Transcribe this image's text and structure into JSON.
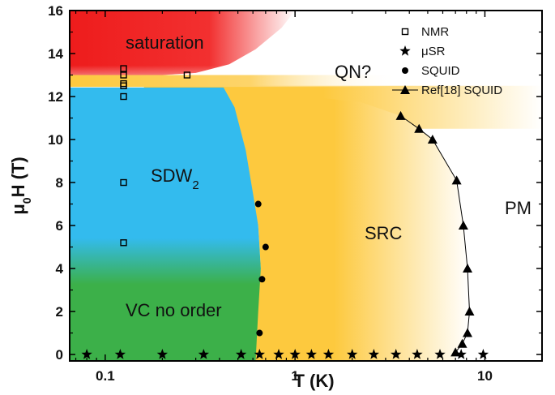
{
  "chart_data": {
    "type": "scatter",
    "title": "",
    "xlabel": "T (K)",
    "ylabel_main": "μ",
    "ylabel_sub": "0",
    "ylabel_rest": "H (T)",
    "xscale": "log",
    "xlim": [
      0.065,
      20
    ],
    "ylim": [
      -0.3,
      16
    ],
    "x_ticks": [
      0.1,
      1,
      10
    ],
    "x_tick_labels": [
      "0.1",
      "1",
      "10"
    ],
    "y_ticks": [
      0,
      2,
      4,
      6,
      8,
      10,
      12,
      14,
      16
    ],
    "y_tick_labels": [
      "0",
      "2",
      "4",
      "6",
      "8",
      "10",
      "12",
      "14",
      "16"
    ],
    "grid": false,
    "legend_position": "top-right",
    "regions": [
      {
        "label": "saturation",
        "color": "#ee1c1c"
      },
      {
        "label": "QN?",
        "color": "#ffffff"
      },
      {
        "label": "SDW",
        "sub": "2",
        "color": "#33bbee"
      },
      {
        "label": "SRC",
        "color": "#fdc93e"
      },
      {
        "label": "VC no order",
        "color": "#3cb049"
      },
      {
        "label": "PM",
        "color": "#ffffff"
      }
    ],
    "series": [
      {
        "name": "NMR",
        "marker": "open-square",
        "x": [
          0.125,
          0.125,
          0.125,
          0.125,
          0.125,
          0.125,
          0.125,
          0.27
        ],
        "y": [
          13.3,
          13.0,
          12.5,
          12.0,
          8.0,
          5.2,
          12.6,
          13.0
        ]
      },
      {
        "name": "μSR",
        "marker": "star",
        "x": [
          0.08,
          0.12,
          0.2,
          0.33,
          0.52,
          0.65,
          0.82,
          1.0,
          1.22,
          1.5,
          2.0,
          2.6,
          3.4,
          4.4,
          5.8,
          7.5,
          9.8
        ],
        "y": [
          0,
          0,
          0,
          0,
          0,
          0,
          0,
          0,
          0,
          0,
          0,
          0,
          0,
          0,
          0,
          0,
          0
        ]
      },
      {
        "name": "SQUID",
        "marker": "filled-circle",
        "x": [
          0.64,
          0.7,
          0.67,
          0.65
        ],
        "y": [
          7.0,
          5.0,
          3.5,
          1.0
        ]
      },
      {
        "name": "Ref[18] SQUID",
        "marker": "filled-triangle-line",
        "x": [
          3.6,
          4.5,
          5.3,
          7.1,
          7.7,
          8.1,
          8.3,
          8.1,
          7.6,
          7.0
        ],
        "y": [
          11.1,
          10.5,
          10.0,
          8.1,
          6.0,
          4.0,
          2.0,
          1.0,
          0.5,
          0.1
        ]
      }
    ]
  }
}
